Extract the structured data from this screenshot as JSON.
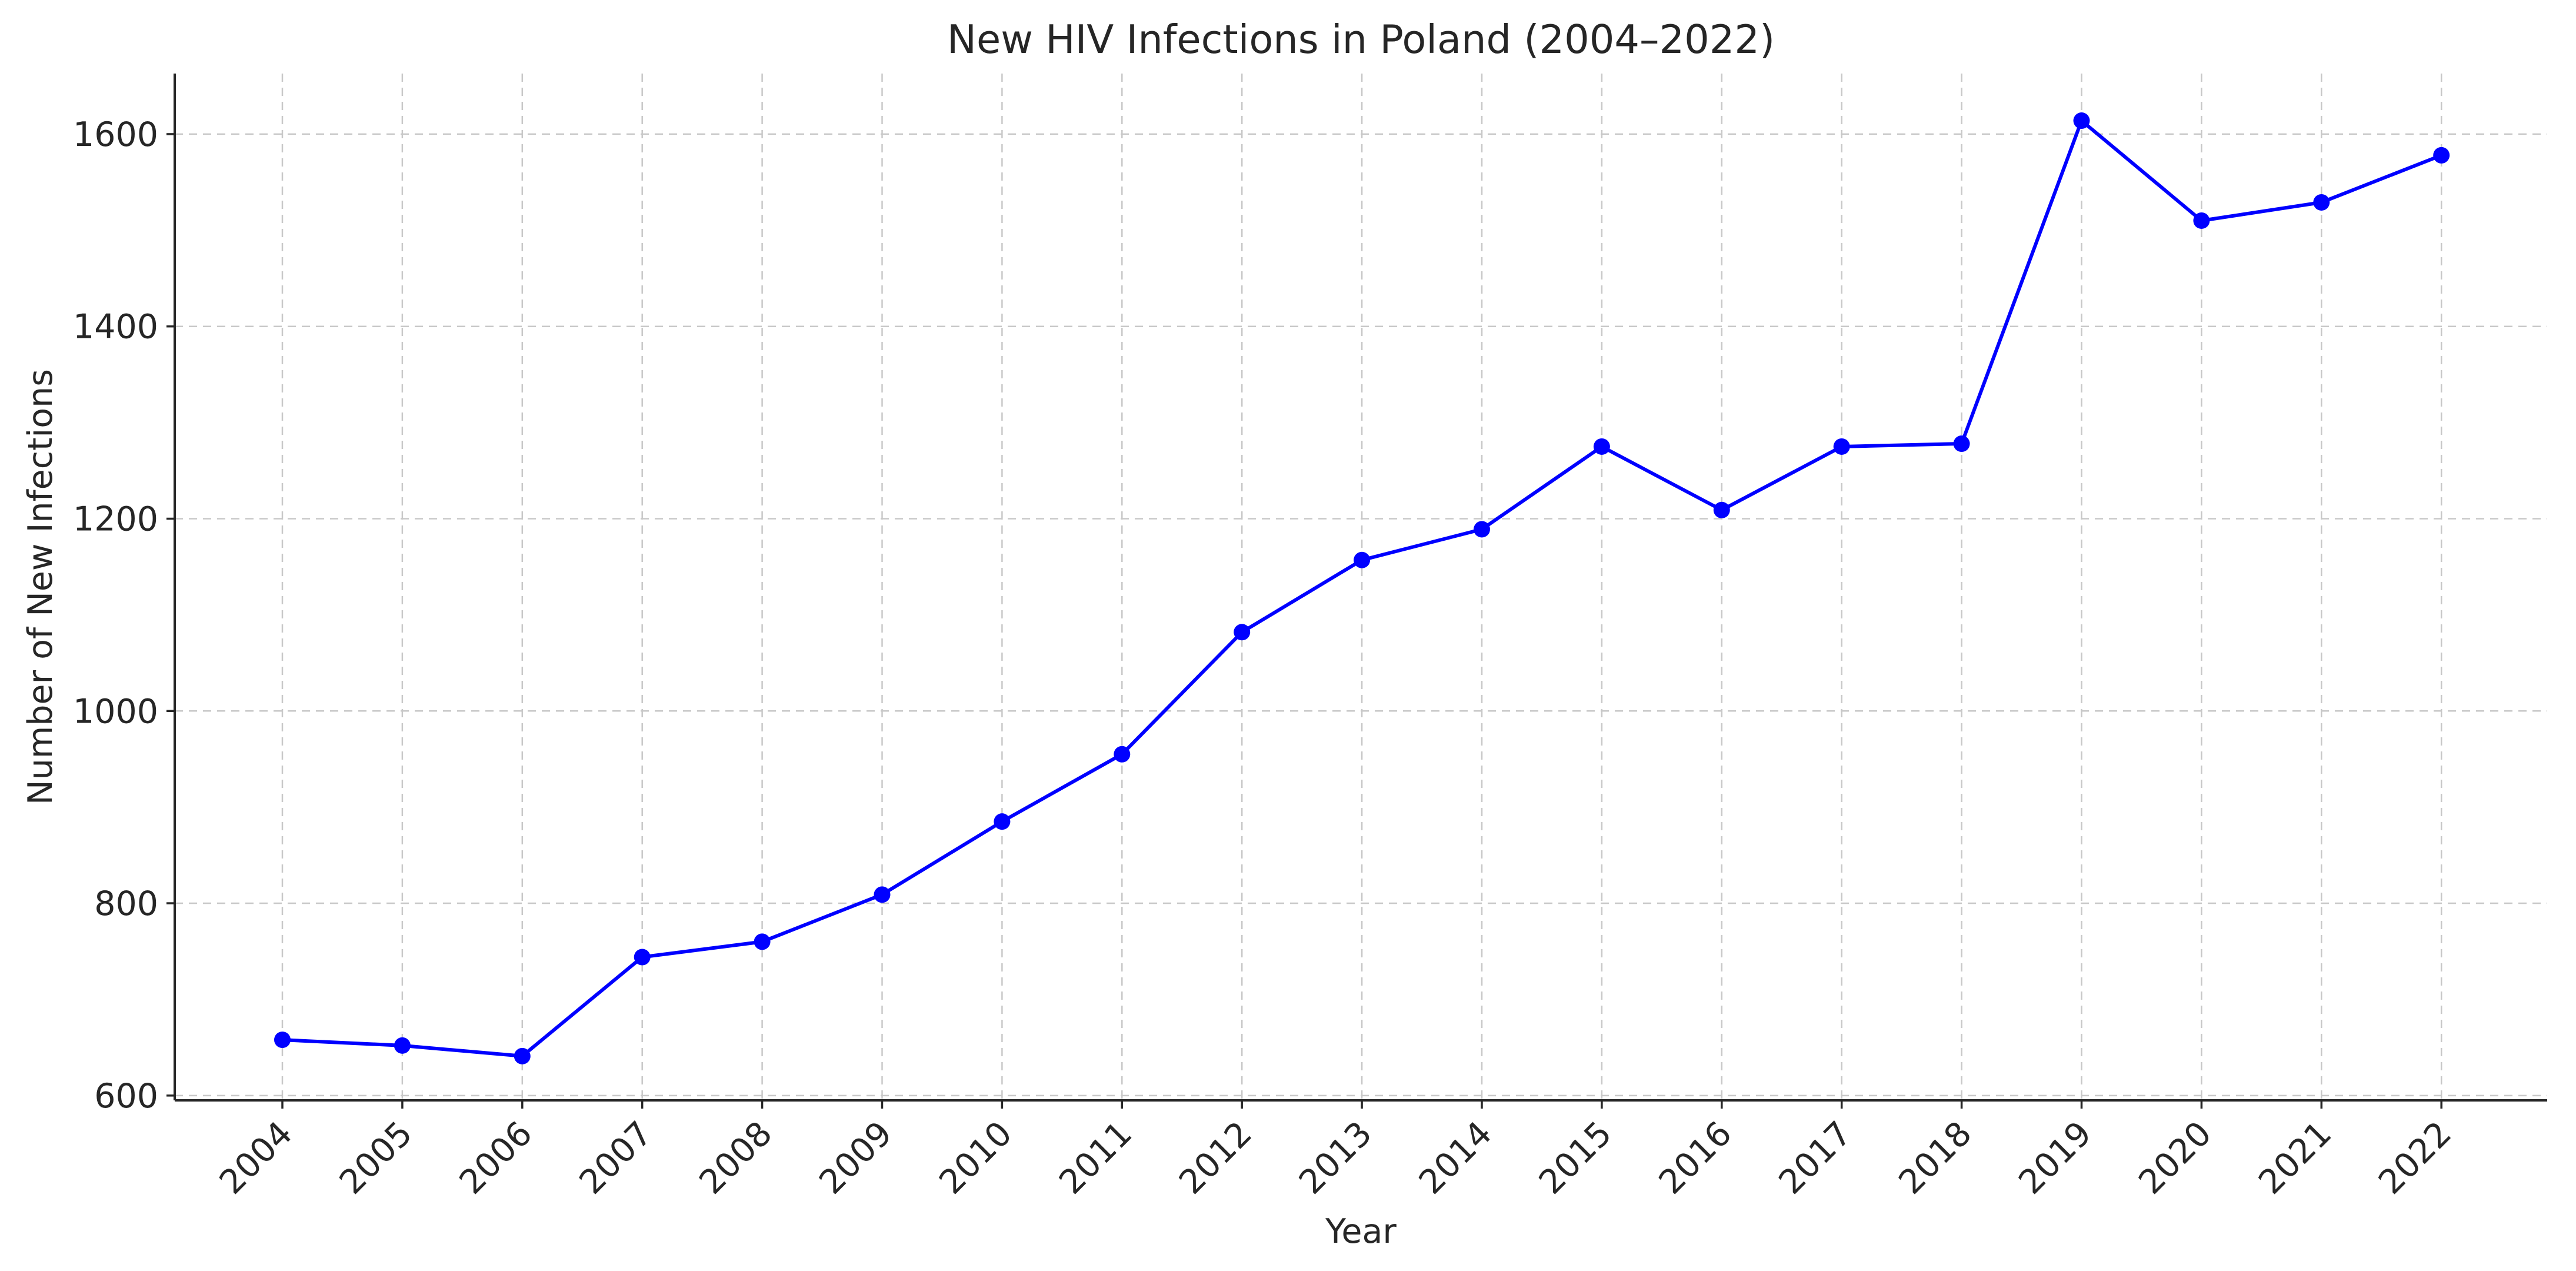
{
  "chart_data": {
    "type": "line",
    "title": "New HIV Infections in Poland (2004–2022)",
    "xlabel": "Year",
    "ylabel": "Number of New Infections",
    "categories": [
      "2004",
      "2005",
      "2006",
      "2007",
      "2008",
      "2009",
      "2010",
      "2011",
      "2012",
      "2013",
      "2014",
      "2015",
      "2016",
      "2017",
      "2018",
      "2019",
      "2020",
      "2021",
      "2022"
    ],
    "series": [
      {
        "name": "New HIV Infections",
        "values": [
          658,
          652,
          641,
          744,
          760,
          809,
          885,
          955,
          1082,
          1157,
          1189,
          1275,
          1209,
          1275,
          1278,
          1614,
          1510,
          1529,
          1578
        ]
      }
    ],
    "ylim": [
      595,
      1663
    ],
    "yticks": [
      600,
      800,
      1000,
      1200,
      1400,
      1600
    ],
    "grid": true,
    "line_color": "#0000ff",
    "marker": "circle"
  }
}
